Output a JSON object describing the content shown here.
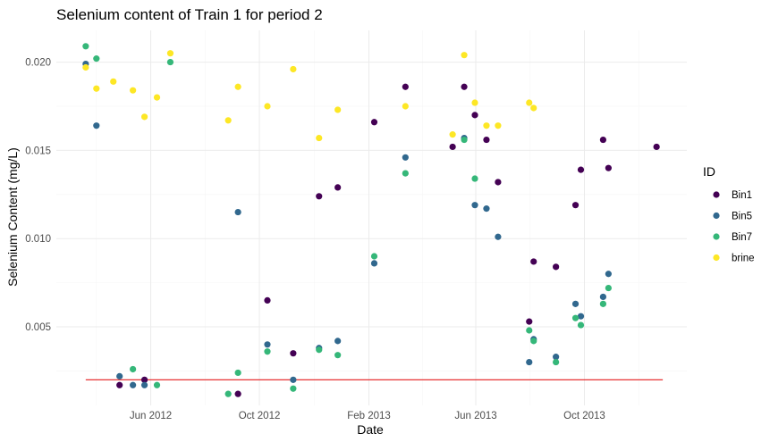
{
  "chart_data": {
    "type": "scatter",
    "title": "Selenium content of Train 1 for period 2",
    "xlabel": "Date",
    "ylabel": "Selenium Content (mg/L)",
    "x_type": "date",
    "xlim": [
      "2012-02-16",
      "2014-01-24"
    ],
    "ylim": [
      0.00055,
      0.0218
    ],
    "x_ticks": [
      {
        "date": "2012-06-01",
        "label": "Jun 2012"
      },
      {
        "date": "2012-10-01",
        "label": "Oct 2012"
      },
      {
        "date": "2013-02-01",
        "label": "Feb 2013"
      },
      {
        "date": "2013-06-01",
        "label": "Jun 2013"
      },
      {
        "date": "2013-10-01",
        "label": "Oct 2013"
      }
    ],
    "y_ticks": [
      {
        "value": 0.005,
        "label": "0.005"
      },
      {
        "value": 0.01,
        "label": "0.010"
      },
      {
        "value": 0.015,
        "label": "0.015"
      },
      {
        "value": 0.02,
        "label": "0.020"
      }
    ],
    "grid": true,
    "legend_title": "ID",
    "legend_position": "right",
    "reference_line": {
      "y": 0.002,
      "color": "#e41a1c",
      "x_start": "2012-03-20",
      "x_end": "2013-12-28"
    },
    "series": [
      {
        "name": "Bin1",
        "color": "#440154",
        "points": [
          [
            "2012-04-27",
            0.0017
          ],
          [
            "2012-05-25",
            0.002
          ],
          [
            "2012-09-07",
            0.0012
          ],
          [
            "2012-10-10",
            0.0065
          ],
          [
            "2012-11-08",
            0.0035
          ],
          [
            "2012-12-07",
            0.0124
          ],
          [
            "2012-12-28",
            0.0129
          ],
          [
            "2013-02-07",
            0.0166
          ],
          [
            "2013-03-14",
            0.0186
          ],
          [
            "2013-05-06",
            0.0152
          ],
          [
            "2013-05-19",
            0.0186
          ],
          [
            "2013-05-31",
            0.017
          ],
          [
            "2013-06-13",
            0.0156
          ],
          [
            "2013-06-26",
            0.0132
          ],
          [
            "2013-07-31",
            0.0053
          ],
          [
            "2013-08-05",
            0.0087
          ],
          [
            "2013-08-30",
            0.0084
          ],
          [
            "2013-09-21",
            0.0119
          ],
          [
            "2013-09-27",
            0.0139
          ],
          [
            "2013-10-22",
            0.0156
          ],
          [
            "2013-10-28",
            0.014
          ],
          [
            "2013-12-21",
            0.0152
          ]
        ]
      },
      {
        "name": "Bin5",
        "color": "#31688e",
        "points": [
          [
            "2012-03-20",
            0.0199
          ],
          [
            "2012-04-01",
            0.0164
          ],
          [
            "2012-04-27",
            0.0022
          ],
          [
            "2012-05-12",
            0.0017
          ],
          [
            "2012-05-25",
            0.0017
          ],
          [
            "2012-09-07",
            0.0115
          ],
          [
            "2012-10-10",
            0.004
          ],
          [
            "2012-11-08",
            0.002
          ],
          [
            "2012-12-07",
            0.0038
          ],
          [
            "2012-12-28",
            0.0042
          ],
          [
            "2013-02-07",
            0.0086
          ],
          [
            "2013-03-14",
            0.0146
          ],
          [
            "2013-05-19",
            0.0157
          ],
          [
            "2013-05-31",
            0.0119
          ],
          [
            "2013-06-13",
            0.0117
          ],
          [
            "2013-06-26",
            0.0101
          ],
          [
            "2013-07-31",
            0.003
          ],
          [
            "2013-08-05",
            0.0043
          ],
          [
            "2013-08-30",
            0.0033
          ],
          [
            "2013-09-21",
            0.0063
          ],
          [
            "2013-09-27",
            0.0056
          ],
          [
            "2013-10-22",
            0.0067
          ],
          [
            "2013-10-28",
            0.008
          ]
        ]
      },
      {
        "name": "Bin7",
        "color": "#35b779",
        "points": [
          [
            "2012-03-20",
            0.0209
          ],
          [
            "2012-04-01",
            0.0202
          ],
          [
            "2012-05-12",
            0.0026
          ],
          [
            "2012-06-08",
            0.0017
          ],
          [
            "2012-06-23",
            0.02
          ],
          [
            "2012-08-27",
            0.0012
          ],
          [
            "2012-09-07",
            0.0024
          ],
          [
            "2012-10-10",
            0.0036
          ],
          [
            "2012-11-08",
            0.0015
          ],
          [
            "2012-12-07",
            0.0037
          ],
          [
            "2012-12-28",
            0.0034
          ],
          [
            "2013-02-07",
            0.009
          ],
          [
            "2013-03-14",
            0.0137
          ],
          [
            "2013-05-19",
            0.0156
          ],
          [
            "2013-05-31",
            0.0134
          ],
          [
            "2013-07-31",
            0.0048
          ],
          [
            "2013-08-05",
            0.0042
          ],
          [
            "2013-08-30",
            0.003
          ],
          [
            "2013-09-21",
            0.0055
          ],
          [
            "2013-09-27",
            0.0051
          ],
          [
            "2013-10-22",
            0.0063
          ],
          [
            "2013-10-28",
            0.0072
          ]
        ]
      },
      {
        "name": "brine",
        "color": "#fde725",
        "points": [
          [
            "2012-03-20",
            0.0197
          ],
          [
            "2012-04-01",
            0.0185
          ],
          [
            "2012-04-20",
            0.0189
          ],
          [
            "2012-05-12",
            0.0184
          ],
          [
            "2012-05-25",
            0.0169
          ],
          [
            "2012-06-08",
            0.018
          ],
          [
            "2012-06-23",
            0.0205
          ],
          [
            "2012-08-27",
            0.0167
          ],
          [
            "2012-09-07",
            0.0186
          ],
          [
            "2012-10-10",
            0.0175
          ],
          [
            "2012-11-08",
            0.0196
          ],
          [
            "2012-12-07",
            0.0157
          ],
          [
            "2012-12-28",
            0.0173
          ],
          [
            "2013-03-14",
            0.0175
          ],
          [
            "2013-05-06",
            0.0159
          ],
          [
            "2013-05-19",
            0.0204
          ],
          [
            "2013-05-31",
            0.0177
          ],
          [
            "2013-06-13",
            0.0164
          ],
          [
            "2013-06-26",
            0.0164
          ],
          [
            "2013-07-31",
            0.0177
          ],
          [
            "2013-08-05",
            0.0174
          ]
        ]
      }
    ]
  }
}
